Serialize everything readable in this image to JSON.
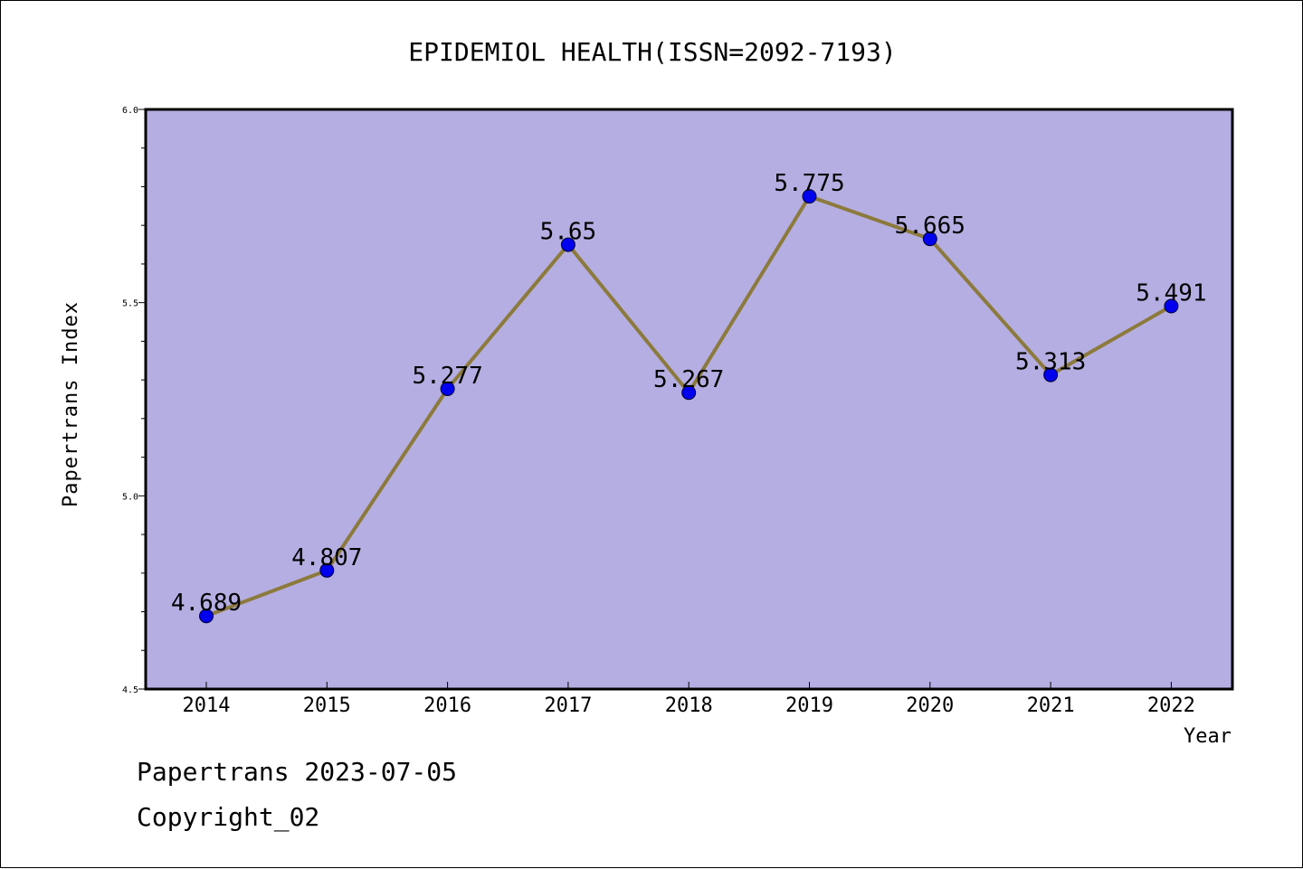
{
  "chart_data": {
    "type": "line",
    "title": "EPIDEMIOL HEALTH(ISSN=2092-7193)",
    "xlabel": "Year",
    "ylabel": "Papertrans Index",
    "categories": [
      "2014",
      "2015",
      "2016",
      "2017",
      "2018",
      "2019",
      "2020",
      "2021",
      "2022"
    ],
    "values": [
      4.689,
      4.807,
      5.277,
      5.65,
      5.267,
      5.775,
      5.665,
      5.313,
      5.491
    ],
    "data_labels": [
      "4.689",
      "4.807",
      "5.277",
      "5.65",
      "5.267",
      "5.775",
      "5.665",
      "5.313",
      "5.491"
    ],
    "ylim": [
      4.5,
      6.0
    ],
    "y_ticks": [
      "4.5",
      "5.0",
      "5.5",
      "6.0"
    ],
    "colors": {
      "plot_background": "#b5aee2",
      "line": "#8c7a3c",
      "marker": "#0000ee"
    },
    "grid": false,
    "legend": "none"
  },
  "footer": {
    "date_line": "Papertrans 2023-07-05",
    "copyright": "Copyright_02"
  }
}
